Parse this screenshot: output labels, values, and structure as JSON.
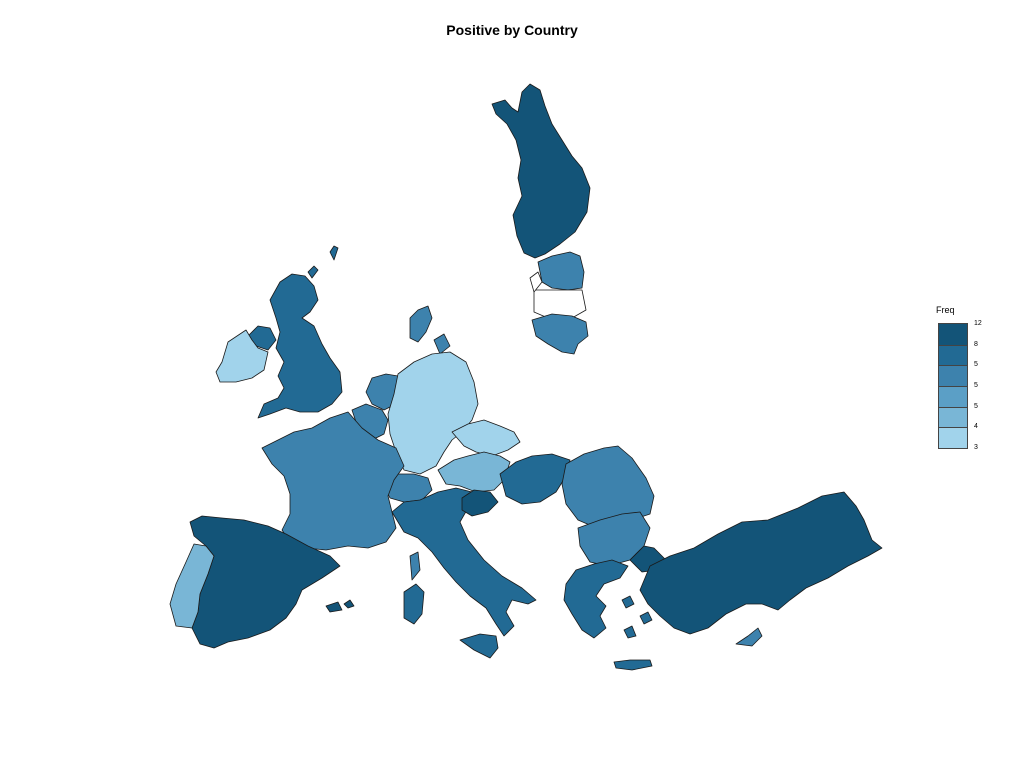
{
  "chart_data": {
    "type": "choropleth",
    "title": "Positive by Country",
    "legend": {
      "title": "Freq",
      "tick_labels": [
        "12",
        "8",
        "5",
        "5",
        "5",
        "4",
        "3"
      ],
      "colors": [
        "#135478",
        "#226a94",
        "#3d82ad",
        "#5b9fc6",
        "#79b6d6",
        "#a1d3eb"
      ]
    },
    "countries": [
      {
        "name": "Finland",
        "freq": 12
      },
      {
        "name": "Estonia",
        "freq": 5
      },
      {
        "name": "Lithuania",
        "freq": 5
      },
      {
        "name": "Sweden",
        "freq": null
      },
      {
        "name": "United Kingdom",
        "freq": 8
      },
      {
        "name": "Ireland",
        "freq": 3
      },
      {
        "name": "Denmark",
        "freq": 5
      },
      {
        "name": "Netherlands",
        "freq": 5
      },
      {
        "name": "Belgium",
        "freq": 5
      },
      {
        "name": "Germany",
        "freq": 3
      },
      {
        "name": "Czechia",
        "freq": 3
      },
      {
        "name": "Austria",
        "freq": 4
      },
      {
        "name": "Switzerland",
        "freq": 5
      },
      {
        "name": "France",
        "freq": 5
      },
      {
        "name": "Spain",
        "freq": 12
      },
      {
        "name": "Portugal",
        "freq": 4
      },
      {
        "name": "Italy",
        "freq": 8
      },
      {
        "name": "Slovenia",
        "freq": 12
      },
      {
        "name": "Hungary",
        "freq": 8
      },
      {
        "name": "Romania",
        "freq": 5
      },
      {
        "name": "Bulgaria",
        "freq": 5
      },
      {
        "name": "Greece",
        "freq": 8
      },
      {
        "name": "Turkey",
        "freq": 12
      },
      {
        "name": "Cyprus",
        "freq": 5
      }
    ]
  }
}
